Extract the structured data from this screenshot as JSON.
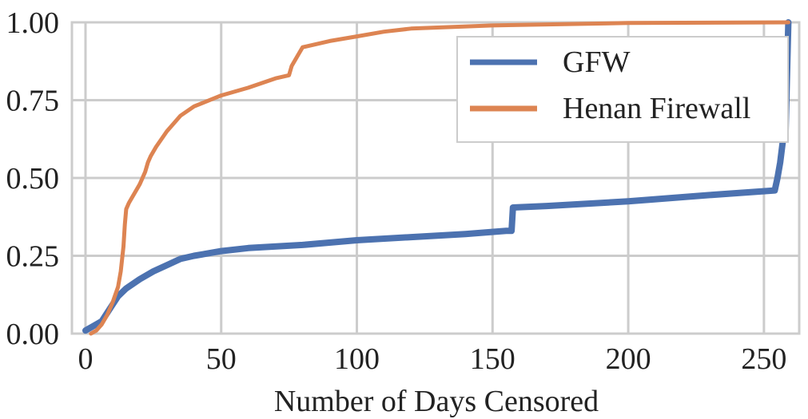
{
  "chart_data": {
    "type": "line",
    "title": "",
    "xlabel": "Number of Days Censored",
    "ylabel": "",
    "xlim": [
      -5,
      263
    ],
    "ylim": [
      0.0,
      1.0
    ],
    "x_ticks": [
      0,
      50,
      100,
      150,
      200,
      250
    ],
    "y_ticks": [
      0.0,
      0.25,
      0.5,
      0.75,
      1.0
    ],
    "x_tick_labels": [
      "0",
      "50",
      "100",
      "150",
      "200",
      "250"
    ],
    "y_tick_labels": [
      "0.00",
      "0.25",
      "0.50",
      "0.75",
      "1.00"
    ],
    "grid": true,
    "legend_position": "top-right",
    "series": [
      {
        "name": "GFW",
        "color": "#4c72b0",
        "x": [
          0,
          3,
          6,
          9,
          12,
          15,
          20,
          25,
          30,
          35,
          40,
          50,
          60,
          80,
          100,
          120,
          140,
          155,
          157,
          157.5,
          170,
          200,
          230,
          254,
          255,
          256,
          257,
          258,
          259
        ],
        "y": [
          0.01,
          0.025,
          0.04,
          0.08,
          0.12,
          0.145,
          0.175,
          0.2,
          0.22,
          0.24,
          0.25,
          0.265,
          0.275,
          0.285,
          0.3,
          0.31,
          0.32,
          0.33,
          0.33,
          0.405,
          0.41,
          0.425,
          0.445,
          0.46,
          0.5,
          0.55,
          0.62,
          0.65,
          1.0
        ]
      },
      {
        "name": "Henan Firewall",
        "color": "#dd8452",
        "x": [
          2,
          4,
          6,
          8,
          10,
          12,
          13,
          14,
          14.5,
          15,
          16,
          18,
          20,
          22,
          23,
          24,
          26,
          30,
          35,
          40,
          50,
          60,
          70,
          75,
          76,
          78,
          80,
          90,
          100,
          110,
          120,
          150,
          200,
          259
        ],
        "y": [
          0.0,
          0.01,
          0.03,
          0.06,
          0.1,
          0.15,
          0.2,
          0.28,
          0.35,
          0.4,
          0.42,
          0.45,
          0.48,
          0.52,
          0.55,
          0.57,
          0.6,
          0.65,
          0.7,
          0.73,
          0.765,
          0.79,
          0.82,
          0.83,
          0.86,
          0.89,
          0.92,
          0.94,
          0.955,
          0.97,
          0.98,
          0.99,
          0.998,
          1.0
        ]
      }
    ]
  }
}
